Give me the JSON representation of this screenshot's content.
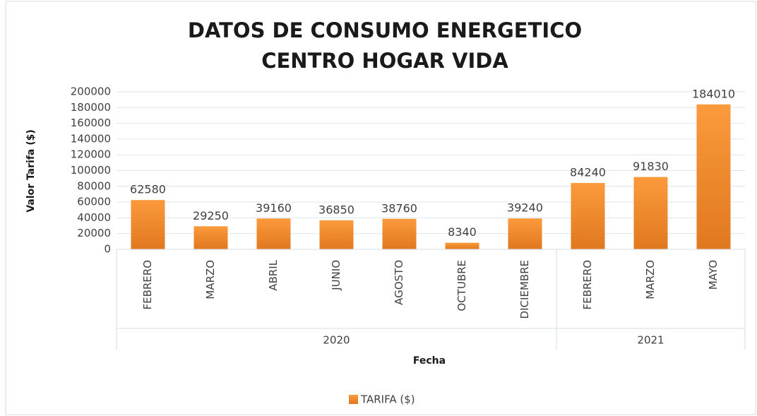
{
  "chart_data": {
    "type": "bar",
    "title": [
      "DATOS DE CONSUMO ENERGETICO",
      "CENTRO HOGAR VIDA"
    ],
    "y_label": "Valor Tarifa ($)",
    "x_label": "Fecha",
    "legend": "TARIFA ($)",
    "color": "#f28a2b",
    "grid": true,
    "groups": [
      {
        "label": "2020",
        "categories": [
          "FEBRERO",
          "MARZO",
          "ABRIL",
          "JUNIO",
          "AGOSTO",
          "OCTUBRE",
          "DICIEMBRE"
        ],
        "values": [
          62580,
          29250,
          39160,
          36850,
          38760,
          8340,
          39240
        ]
      },
      {
        "label": "2021",
        "categories": [
          "FEBRERO",
          "MARZO",
          "MAYO"
        ],
        "values": [
          84240,
          91830,
          184010
        ]
      }
    ],
    "ylim": [
      0,
      200000
    ],
    "yticks": [
      0,
      20000,
      40000,
      60000,
      80000,
      100000,
      120000,
      140000,
      160000,
      180000,
      200000
    ]
  }
}
